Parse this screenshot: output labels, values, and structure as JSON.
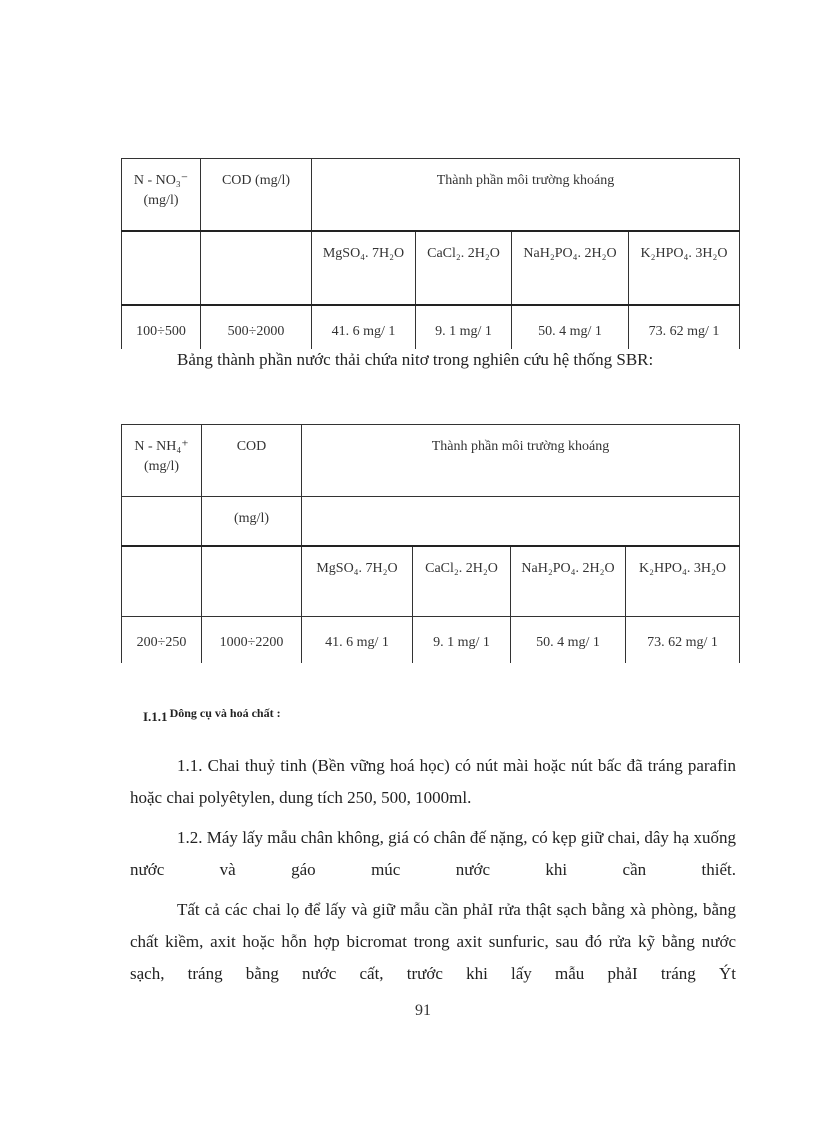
{
  "table1": {
    "header": [
      "N - NO₃⁻ (mg/l)",
      "COD (mg/l)",
      "Thành phần môi trường khoáng"
    ],
    "subheader": [
      "",
      "",
      "MgSO₄. 7H₂O",
      "CaCl₂. 2H₂O",
      "NaH₂PO₄. 2H₂O",
      "K₂HPO₄. 3H₂O"
    ],
    "row": [
      "100÷500",
      "500÷2000",
      "41. 6 mg/ 1",
      "9. 1 mg/ 1",
      "50. 4 mg/ 1",
      "73. 62 mg/ 1"
    ]
  },
  "caption": "Bảng thành phần nước thải chứa nitơ trong nghiên cứu hệ thống SBR:",
  "table2": {
    "header": [
      "N - NH₄⁺ (mg/l)",
      "COD",
      "Thành phần môi trường khoáng"
    ],
    "row2": [
      "",
      "(mg/l)",
      ""
    ],
    "subheader": [
      "",
      "",
      "MgSO₄. 7H₂O",
      "CaCl₂. 2H₂O",
      "NaH₂PO₄. 2H₂O",
      "K₂HPO₄. 3H₂O"
    ],
    "row": [
      "200÷250",
      "1000÷2200",
      "41. 6 mg/ 1",
      "9. 1 mg/ 1",
      "50. 4 mg/ 1",
      "73. 62 mg/ 1"
    ]
  },
  "section": {
    "number": "I.1.1",
    "title": "Dông cụ và hoá chất :"
  },
  "paragraphs": [
    "1.1. Chai thuỷ tinh (Bền vững hoá học) có nút mài hoặc nút bấc đã tráng parafin hoặc chai polyêtylen, dung tích 250, 500, 1000ml.",
    "1.2. Máy lấy mẫu chân không, giá có chân đế nặng, có kẹp giữ chai, dây hạ xuống nước và gáo múc nước khi cần thiết.",
    "Tất cả các chai lọ để lấy và giữ mẫu cần phảI rửa thật sạch bằng xà phòng, bằng chất kiềm, axit hoặc hỗn hợp bicromat trong axit sunfuric, sau đó rửa kỹ bằng nước sạch, tráng bằng nước cất, trước khi lấy mẫu phảI tráng Ýt"
  ],
  "page_number": "91"
}
